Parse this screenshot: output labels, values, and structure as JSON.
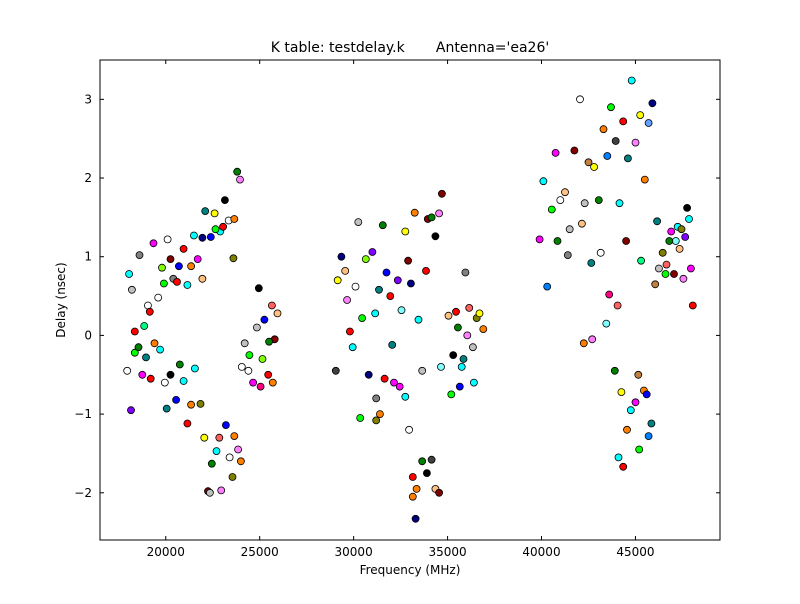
{
  "chart_data": {
    "type": "scatter",
    "title": "K table: testdelay.k       Antenna='ea26'",
    "xlabel": "Frequency (MHz)",
    "ylabel": "Delay (nsec)",
    "xlim": [
      16500,
      49500
    ],
    "ylim": [
      -2.6,
      3.5
    ],
    "xticks": [
      20000,
      25000,
      30000,
      35000,
      40000,
      45000
    ],
    "yticks": [
      -2,
      -1,
      0,
      1,
      2,
      3
    ],
    "grid": false,
    "palette": [
      "#ff0000",
      "#00ff00",
      "#0000ff",
      "#00ffff",
      "#ff00ff",
      "#ffff00",
      "#008000",
      "#000080",
      "#800000",
      "#808080",
      "#ff8000",
      "#ff80ff",
      "#8000ff",
      "#00ff80",
      "#80ffff",
      "#ffffff",
      "#404040",
      "#ff6060",
      "#0080ff",
      "#80ff00",
      "#ffc080",
      "#c0c0c0",
      "#808000",
      "#ff0080",
      "#008080",
      "#000000",
      "#c08040",
      "#60a0ff"
    ],
    "points": [
      [
        18050,
        0.78,
        3
      ],
      [
        18200,
        0.58,
        21
      ],
      [
        18350,
        0.05,
        0
      ],
      [
        18600,
        1.02,
        9
      ],
      [
        18850,
        0.12,
        13
      ],
      [
        19050,
        0.38,
        15
      ],
      [
        19150,
        0.3,
        0
      ],
      [
        19350,
        1.17,
        4
      ],
      [
        19600,
        0.48,
        15
      ],
      [
        19800,
        0.86,
        19
      ],
      [
        19900,
        0.66,
        1
      ],
      [
        20100,
        1.22,
        15
      ],
      [
        20250,
        0.97,
        8
      ],
      [
        20400,
        0.72,
        9
      ],
      [
        20600,
        0.68,
        0
      ],
      [
        20700,
        0.88,
        2
      ],
      [
        20950,
        1.1,
        0
      ],
      [
        21150,
        0.64,
        3
      ],
      [
        21350,
        0.88,
        10
      ],
      [
        21500,
        1.27,
        3
      ],
      [
        21700,
        0.97,
        4
      ],
      [
        21950,
        0.72,
        20
      ],
      [
        22100,
        1.58,
        24
      ],
      [
        22400,
        1.25,
        2
      ],
      [
        22600,
        1.55,
        5
      ],
      [
        22900,
        1.32,
        3
      ],
      [
        23150,
        1.72,
        25
      ],
      [
        23350,
        1.46,
        15
      ],
      [
        23600,
        0.98,
        22
      ],
      [
        23800,
        2.08,
        6
      ],
      [
        23950,
        1.98,
        11
      ],
      [
        21950,
        1.24,
        7
      ],
      [
        22650,
        1.35,
        1
      ],
      [
        23050,
        1.38,
        0
      ],
      [
        23650,
        1.48,
        10
      ],
      [
        17950,
        -0.45,
        15
      ],
      [
        18150,
        -0.95,
        12
      ],
      [
        18350,
        -0.22,
        1
      ],
      [
        18550,
        -0.15,
        6
      ],
      [
        18750,
        -0.5,
        4
      ],
      [
        18950,
        -0.28,
        24
      ],
      [
        19200,
        -0.55,
        0
      ],
      [
        19400,
        -0.1,
        10
      ],
      [
        19700,
        -0.18,
        3
      ],
      [
        19950,
        -0.6,
        15
      ],
      [
        20050,
        -0.93,
        24
      ],
      [
        20250,
        -0.5,
        25
      ],
      [
        20550,
        -0.82,
        2
      ],
      [
        20750,
        -0.37,
        6
      ],
      [
        20950,
        -0.58,
        3
      ],
      [
        21150,
        -1.12,
        0
      ],
      [
        21350,
        -0.88,
        10
      ],
      [
        21550,
        -0.42,
        3
      ],
      [
        21850,
        -0.87,
        22
      ],
      [
        22050,
        -1.3,
        5
      ],
      [
        22250,
        -1.98,
        8
      ],
      [
        22450,
        -1.63,
        6
      ],
      [
        22700,
        -1.47,
        3
      ],
      [
        22850,
        -1.3,
        17
      ],
      [
        22950,
        -1.97,
        11
      ],
      [
        23200,
        -1.14,
        2
      ],
      [
        23400,
        -1.55,
        15
      ],
      [
        23550,
        -1.8,
        22
      ],
      [
        23650,
        -1.28,
        10
      ],
      [
        23850,
        -1.45,
        11
      ],
      [
        24000,
        -1.6,
        10
      ],
      [
        22350,
        -2.0,
        21
      ],
      [
        24050,
        -0.4,
        15
      ],
      [
        24200,
        -0.1,
        21
      ],
      [
        24450,
        -0.25,
        1
      ],
      [
        24650,
        -0.6,
        4
      ],
      [
        24850,
        0.1,
        21
      ],
      [
        24950,
        0.6,
        25
      ],
      [
        25050,
        -0.65,
        23
      ],
      [
        25250,
        0.2,
        2
      ],
      [
        25450,
        -0.5,
        0
      ],
      [
        25650,
        0.38,
        17
      ],
      [
        25800,
        -0.05,
        8
      ],
      [
        25950,
        0.28,
        20
      ],
      [
        24400,
        -0.45,
        15
      ],
      [
        25150,
        -0.3,
        19
      ],
      [
        25700,
        -0.6,
        10
      ],
      [
        25500,
        -0.08,
        6
      ],
      [
        29050,
        -0.45,
        16
      ],
      [
        29150,
        0.7,
        5
      ],
      [
        29350,
        1.0,
        7
      ],
      [
        29550,
        0.82,
        20
      ],
      [
        29650,
        0.45,
        11
      ],
      [
        29800,
        0.05,
        0
      ],
      [
        29950,
        -0.15,
        3
      ],
      [
        30100,
        0.62,
        15
      ],
      [
        30250,
        1.44,
        21
      ],
      [
        30450,
        0.22,
        1
      ],
      [
        30650,
        0.97,
        19
      ],
      [
        30800,
        -0.5,
        7
      ],
      [
        31000,
        1.06,
        12
      ],
      [
        31150,
        0.28,
        3
      ],
      [
        31350,
        0.58,
        24
      ],
      [
        31550,
        1.4,
        6
      ],
      [
        31750,
        0.8,
        2
      ],
      [
        31950,
        0.5,
        0
      ],
      [
        32150,
        -0.6,
        4
      ],
      [
        32350,
        0.7,
        12
      ],
      [
        32550,
        0.32,
        14
      ],
      [
        32750,
        1.32,
        5
      ],
      [
        32900,
        0.95,
        8
      ],
      [
        33050,
        0.66,
        7
      ],
      [
        33250,
        1.56,
        10
      ],
      [
        33450,
        0.2,
        3
      ],
      [
        33650,
        -0.45,
        21
      ],
      [
        33850,
        0.82,
        0
      ],
      [
        33950,
        1.48,
        8
      ],
      [
        34150,
        1.5,
        6
      ],
      [
        34350,
        1.26,
        25
      ],
      [
        34550,
        1.55,
        11
      ],
      [
        34700,
        1.8,
        8
      ],
      [
        34650,
        -0.4,
        14
      ],
      [
        31200,
        -0.8,
        9
      ],
      [
        30350,
        -1.05,
        1
      ],
      [
        32050,
        -0.12,
        24
      ],
      [
        31400,
        -1.0,
        10
      ],
      [
        31650,
        -0.55,
        0
      ],
      [
        32450,
        -0.65,
        4
      ],
      [
        32750,
        -0.78,
        3
      ],
      [
        32950,
        -1.2,
        15
      ],
      [
        33150,
        -1.8,
        0
      ],
      [
        33350,
        -1.95,
        10
      ],
      [
        33650,
        -1.6,
        6
      ],
      [
        33900,
        -1.75,
        25
      ],
      [
        34150,
        -1.58,
        16
      ],
      [
        34350,
        -1.95,
        20
      ],
      [
        34550,
        -2.0,
        8
      ],
      [
        33300,
        -2.33,
        7
      ],
      [
        33150,
        -2.05,
        10
      ],
      [
        31200,
        -1.08,
        22
      ],
      [
        35050,
        0.25,
        20
      ],
      [
        35300,
        -0.25,
        25
      ],
      [
        35550,
        0.1,
        6
      ],
      [
        35750,
        -0.4,
        3
      ],
      [
        35950,
        0.8,
        9
      ],
      [
        36150,
        0.35,
        17
      ],
      [
        36350,
        -0.15,
        21
      ],
      [
        36550,
        0.22,
        22
      ],
      [
        36700,
        0.28,
        5
      ],
      [
        36900,
        0.08,
        10
      ],
      [
        35650,
        -0.65,
        2
      ],
      [
        36050,
        0.0,
        11
      ],
      [
        36400,
        -0.6,
        3
      ],
      [
        35200,
        -0.75,
        1
      ],
      [
        35850,
        -0.3,
        24
      ],
      [
        35450,
        0.3,
        0
      ],
      [
        39900,
        1.22,
        4
      ],
      [
        40100,
        1.96,
        3
      ],
      [
        40300,
        0.62,
        18
      ],
      [
        40550,
        1.6,
        1
      ],
      [
        40750,
        2.32,
        4
      ],
      [
        41000,
        1.72,
        15
      ],
      [
        41250,
        1.82,
        20
      ],
      [
        41500,
        1.35,
        21
      ],
      [
        41750,
        2.35,
        8
      ],
      [
        42050,
        3.0,
        15
      ],
      [
        42300,
        1.68,
        21
      ],
      [
        42500,
        2.2,
        26
      ],
      [
        42800,
        2.14,
        5
      ],
      [
        43050,
        1.72,
        6
      ],
      [
        43300,
        2.62,
        10
      ],
      [
        43500,
        2.28,
        18
      ],
      [
        43700,
        2.9,
        1
      ],
      [
        43950,
        2.47,
        16
      ],
      [
        44150,
        1.68,
        3
      ],
      [
        44350,
        2.72,
        0
      ],
      [
        44600,
        2.25,
        24
      ],
      [
        44800,
        3.24,
        3
      ],
      [
        45000,
        2.45,
        11
      ],
      [
        45250,
        2.8,
        5
      ],
      [
        45500,
        1.98,
        10
      ],
      [
        45700,
        2.7,
        27
      ],
      [
        45900,
        2.95,
        7
      ],
      [
        40850,
        1.2,
        6
      ],
      [
        41400,
        1.02,
        9
      ],
      [
        42150,
        1.42,
        20
      ],
      [
        42650,
        0.92,
        24
      ],
      [
        43150,
        1.05,
        15
      ],
      [
        43600,
        0.52,
        23
      ],
      [
        44050,
        0.38,
        17
      ],
      [
        44500,
        1.2,
        8
      ],
      [
        45300,
        0.95,
        13
      ],
      [
        42250,
        -0.1,
        10
      ],
      [
        42700,
        -0.05,
        11
      ],
      [
        43450,
        0.15,
        14
      ],
      [
        43900,
        -0.45,
        6
      ],
      [
        44250,
        -0.72,
        5
      ],
      [
        44550,
        -1.2,
        10
      ],
      [
        44750,
        -0.95,
        3
      ],
      [
        45000,
        -0.85,
        4
      ],
      [
        45200,
        -1.45,
        1
      ],
      [
        45450,
        -0.7,
        10
      ],
      [
        45700,
        -1.28,
        18
      ],
      [
        45850,
        -1.12,
        24
      ],
      [
        44100,
        -1.55,
        3
      ],
      [
        44350,
        -1.67,
        0
      ],
      [
        45150,
        -0.5,
        26
      ],
      [
        45600,
        -0.75,
        2
      ],
      [
        46050,
        0.65,
        26
      ],
      [
        46250,
        0.85,
        21
      ],
      [
        46450,
        1.05,
        22
      ],
      [
        46650,
        0.9,
        17
      ],
      [
        46900,
        1.32,
        4
      ],
      [
        47150,
        1.2,
        14
      ],
      [
        47350,
        1.1,
        20
      ],
      [
        47550,
        0.72,
        11
      ],
      [
        47750,
        1.62,
        25
      ],
      [
        47950,
        0.85,
        4
      ],
      [
        48050,
        0.38,
        0
      ],
      [
        46150,
        1.45,
        24
      ],
      [
        46800,
        1.2,
        6
      ],
      [
        47250,
        1.38,
        3
      ],
      [
        47650,
        1.25,
        12
      ],
      [
        47850,
        1.48,
        3
      ],
      [
        46600,
        0.78,
        1
      ],
      [
        47050,
        0.78,
        8
      ],
      [
        47450,
        1.35,
        22
      ]
    ]
  }
}
